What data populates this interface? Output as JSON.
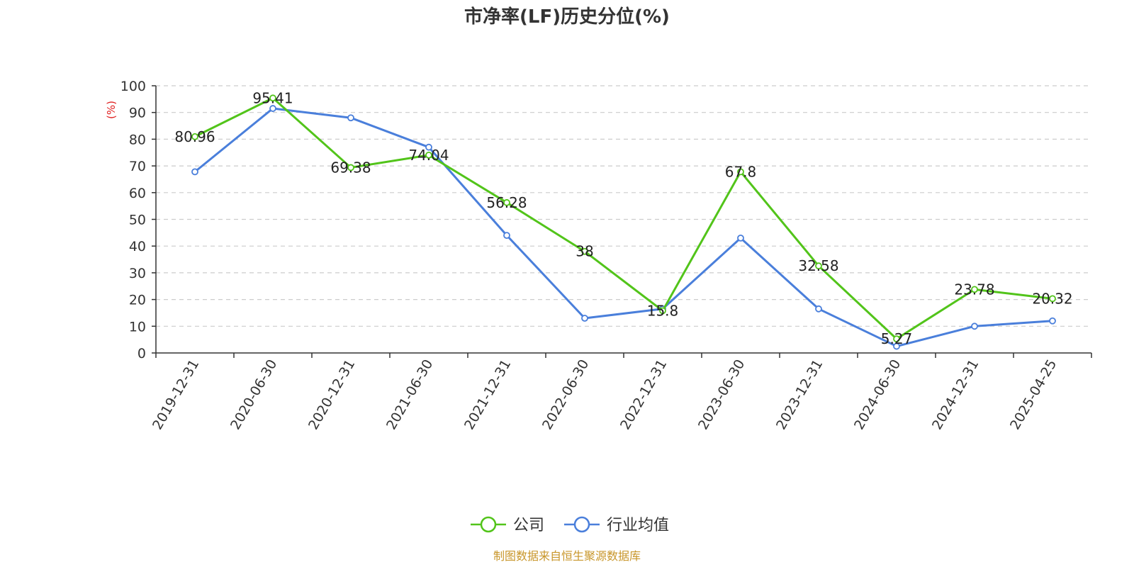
{
  "chart_data": {
    "type": "line",
    "title": "市净率(LF)历史分位(%)",
    "ylabel": "(%)",
    "xlabel": "",
    "ylim": [
      0,
      100
    ],
    "yticks": [
      0,
      10,
      20,
      30,
      40,
      50,
      60,
      70,
      80,
      90,
      100
    ],
    "grid": true,
    "legend_position": "bottom-center",
    "categories": [
      "2019-12-31",
      "2020-06-30",
      "2020-12-31",
      "2021-06-30",
      "2021-12-31",
      "2022-06-30",
      "2022-12-31",
      "2023-06-30",
      "2023-12-31",
      "2024-06-30",
      "2024-12-31",
      "2025-04-25"
    ],
    "series": [
      {
        "name": "公司",
        "color": "#52c41a",
        "values": [
          80.96,
          95.41,
          69.38,
          74.04,
          56.28,
          38,
          15.8,
          67.8,
          32.58,
          5.27,
          23.78,
          20.32
        ],
        "labels": [
          "80.96",
          "95.41",
          "69.38",
          "74.04",
          "56.28",
          "38",
          "15.8",
          "67.8",
          "32.58",
          "5.27",
          "23.78",
          "20.32"
        ]
      },
      {
        "name": "行业均值",
        "color": "#4a7fdb",
        "values": [
          67.8,
          91.5,
          88.0,
          77.0,
          44.0,
          13.0,
          16.5,
          43.0,
          16.5,
          2.5,
          10.0,
          12.0
        ]
      }
    ],
    "source": "制图数据来自恒生聚源数据库"
  }
}
